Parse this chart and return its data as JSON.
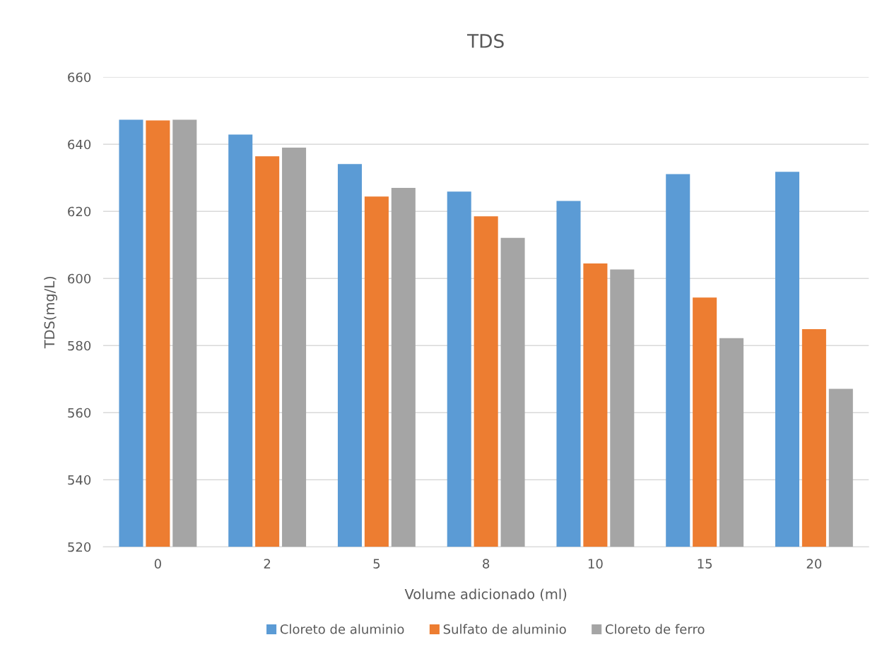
{
  "chart_data": {
    "type": "bar",
    "title": "TDS",
    "xlabel": "Volume adicionado (ml)",
    "ylabel": "TDS(mg/L)",
    "categories": [
      "0",
      "2",
      "5",
      "8",
      "10",
      "15",
      "20"
    ],
    "series": [
      {
        "name": "Cloreto de aluminio",
        "color": "#5b9bd5",
        "values": [
          647.3,
          642.9,
          634.1,
          625.9,
          623.1,
          631.1,
          631.8
        ]
      },
      {
        "name": "Sulfato de aluminio",
        "color": "#ed7d31",
        "values": [
          647.1,
          636.4,
          624.4,
          618.5,
          604.5,
          594.3,
          584.9
        ]
      },
      {
        "name": "Cloreto de ferro",
        "color": "#a5a5a5",
        "values": [
          647.3,
          639.0,
          627.0,
          612.1,
          602.7,
          582.2,
          567.1
        ]
      }
    ],
    "ylim": [
      520,
      660
    ],
    "yticks": [
      520,
      540,
      560,
      580,
      600,
      620,
      640,
      660
    ],
    "grid": "y",
    "legend": "bottom"
  }
}
